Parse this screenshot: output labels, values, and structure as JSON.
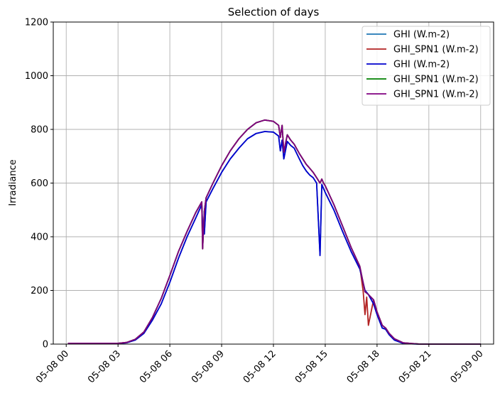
{
  "chart_data": {
    "type": "line",
    "title": "Selection of days",
    "xlabel": "",
    "ylabel": "Irradiance",
    "ylim": [
      0,
      1200
    ],
    "xlim": [
      "2024-05-07T23:15",
      "2024-05-09T00:45"
    ],
    "yticks": [
      0,
      200,
      400,
      600,
      800,
      1000,
      1200
    ],
    "xticks": [
      "05-08 00",
      "05-08 03",
      "05-08 06",
      "05-08 09",
      "05-08 12",
      "05-08 15",
      "05-08 18",
      "05-08 21",
      "05-09 00"
    ],
    "grid": true,
    "legend_position": "top-right",
    "series": [
      {
        "name": "GHI (W.m-2)",
        "color": "#1f77b4",
        "x": [
          0.1,
          3.0,
          3.5,
          4.0,
          4.5,
          5.0,
          5.5,
          6.0,
          6.5,
          7.0,
          7.5,
          7.85,
          7.9,
          8.0,
          8.1,
          8.5,
          9.0,
          9.5,
          10.0,
          10.5,
          11.0,
          11.5,
          12.0,
          12.3,
          12.4,
          12.5,
          12.6,
          12.8,
          13.0,
          13.2,
          13.5,
          13.7,
          13.9,
          14.1,
          14.3,
          14.5,
          14.7,
          14.8,
          14.9,
          15.0,
          15.5,
          16.0,
          16.5,
          17.0,
          17.3,
          17.5,
          17.8,
          18.0,
          18.3,
          18.5,
          18.7,
          19.0,
          19.5,
          20.0,
          20.5,
          21.0,
          22.0,
          23.0,
          24.0
        ],
        "values": [
          2,
          2,
          5,
          15,
          40,
          90,
          150,
          230,
          320,
          400,
          470,
          520,
          440,
          410,
          530,
          580,
          640,
          690,
          730,
          765,
          785,
          792,
          790,
          775,
          720,
          760,
          690,
          755,
          740,
          730,
          690,
          665,
          645,
          630,
          620,
          600,
          330,
          595,
          580,
          565,
          500,
          420,
          345,
          280,
          200,
          185,
          150,
          110,
          60,
          55,
          35,
          15,
          3,
          1,
          0,
          0,
          0,
          0,
          0
        ]
      },
      {
        "name": "GHI_SPN1 (W.m-2)",
        "color": "#b22222",
        "x": [
          0.1,
          3.0,
          3.5,
          4.0,
          4.5,
          5.0,
          5.5,
          6.0,
          6.5,
          7.0,
          7.5,
          7.85,
          7.9,
          8.0,
          8.1,
          8.5,
          9.0,
          9.5,
          10.0,
          10.5,
          11.0,
          11.5,
          12.0,
          12.3,
          12.4,
          12.5,
          12.6,
          12.8,
          13.0,
          13.2,
          13.5,
          13.7,
          13.9,
          14.1,
          14.3,
          14.5,
          14.7,
          14.8,
          14.9,
          15.0,
          15.5,
          16.0,
          16.5,
          17.0,
          17.2,
          17.3,
          17.4,
          17.5,
          17.8,
          18.0,
          18.3,
          18.5,
          18.7,
          19.0,
          19.5,
          20.0,
          20.5,
          21.0,
          22.0,
          23.0,
          24.0
        ],
        "values": [
          3,
          3,
          6,
          18,
          45,
          100,
          170,
          255,
          345,
          420,
          490,
          530,
          355,
          495,
          545,
          600,
          665,
          720,
          765,
          800,
          825,
          835,
          830,
          815,
          770,
          815,
          715,
          780,
          760,
          745,
          710,
          690,
          670,
          655,
          640,
          620,
          600,
          615,
          600,
          590,
          520,
          440,
          360,
          290,
          195,
          110,
          175,
          70,
          165,
          120,
          70,
          60,
          40,
          20,
          5,
          2,
          0,
          0,
          0,
          0,
          0
        ]
      },
      {
        "name": "GHI (W.m-2)",
        "color": "#0000cd",
        "x": [
          0.1,
          3.0,
          3.5,
          4.0,
          4.5,
          5.0,
          5.5,
          6.0,
          6.5,
          7.0,
          7.5,
          7.85,
          7.9,
          8.0,
          8.1,
          8.5,
          9.0,
          9.5,
          10.0,
          10.5,
          11.0,
          11.5,
          12.0,
          12.3,
          12.4,
          12.5,
          12.6,
          12.8,
          13.0,
          13.2,
          13.5,
          13.7,
          13.9,
          14.1,
          14.3,
          14.5,
          14.7,
          14.8,
          14.9,
          15.0,
          15.5,
          16.0,
          16.5,
          17.0,
          17.3,
          17.5,
          17.8,
          18.0,
          18.3,
          18.5,
          18.7,
          19.0,
          19.5,
          20.0,
          20.5,
          21.0,
          22.0,
          23.0,
          24.0
        ],
        "values": [
          2,
          2,
          5,
          15,
          40,
          90,
          150,
          230,
          320,
          400,
          470,
          520,
          440,
          410,
          530,
          580,
          640,
          690,
          730,
          765,
          785,
          792,
          790,
          775,
          720,
          760,
          690,
          755,
          740,
          730,
          690,
          665,
          645,
          630,
          620,
          600,
          330,
          595,
          580,
          565,
          500,
          420,
          345,
          280,
          200,
          185,
          150,
          110,
          60,
          55,
          35,
          15,
          3,
          1,
          0,
          0,
          0,
          0,
          0
        ]
      },
      {
        "name": "GHI_SPN1 (W.m-2)",
        "color": "#008000",
        "x": [
          0.1,
          3.0,
          3.5,
          4.0,
          4.5,
          5.0,
          5.5,
          6.0,
          6.5,
          7.0,
          7.5,
          7.85,
          7.9,
          8.0,
          8.1,
          8.5,
          9.0,
          9.5,
          10.0,
          10.5,
          11.0,
          11.5,
          12.0,
          12.3,
          12.4,
          12.5,
          12.6,
          12.8,
          13.0,
          13.2,
          13.5,
          13.7,
          13.9,
          14.1,
          14.3,
          14.5,
          14.7,
          14.8,
          14.9,
          15.0,
          15.5,
          16.0,
          16.5,
          17.0,
          17.3,
          17.5,
          17.8,
          18.0,
          18.3,
          18.5,
          18.7,
          19.0,
          19.5,
          20.0,
          20.5,
          21.0,
          22.0,
          23.0,
          24.0
        ],
        "values": [
          3,
          3,
          6,
          18,
          45,
          100,
          170,
          255,
          345,
          420,
          490,
          530,
          355,
          495,
          545,
          600,
          665,
          720,
          765,
          800,
          825,
          835,
          830,
          815,
          770,
          815,
          715,
          780,
          760,
          745,
          710,
          690,
          670,
          655,
          640,
          620,
          600,
          615,
          600,
          590,
          520,
          440,
          360,
          290,
          195,
          185,
          165,
          120,
          70,
          60,
          40,
          20,
          5,
          2,
          0,
          0,
          0,
          0,
          0
        ]
      },
      {
        "name": "GHI_SPN1 (W.m-2)",
        "color": "#800080",
        "x": [
          0.1,
          3.0,
          3.5,
          4.0,
          4.5,
          5.0,
          5.5,
          6.0,
          6.5,
          7.0,
          7.5,
          7.85,
          7.9,
          8.0,
          8.1,
          8.5,
          9.0,
          9.5,
          10.0,
          10.5,
          11.0,
          11.5,
          12.0,
          12.3,
          12.4,
          12.5,
          12.6,
          12.8,
          13.0,
          13.2,
          13.5,
          13.7,
          13.9,
          14.1,
          14.3,
          14.5,
          14.7,
          14.8,
          14.9,
          15.0,
          15.5,
          16.0,
          16.5,
          17.0,
          17.3,
          17.5,
          17.8,
          18.0,
          18.3,
          18.5,
          18.7,
          19.0,
          19.5,
          20.0,
          20.5,
          21.0,
          22.0,
          23.0,
          24.0
        ],
        "values": [
          3,
          3,
          6,
          18,
          45,
          100,
          170,
          255,
          345,
          420,
          490,
          530,
          355,
          495,
          545,
          600,
          665,
          720,
          765,
          800,
          825,
          835,
          830,
          815,
          770,
          815,
          715,
          780,
          760,
          745,
          710,
          690,
          670,
          655,
          640,
          620,
          600,
          615,
          600,
          590,
          520,
          440,
          360,
          290,
          195,
          185,
          165,
          120,
          70,
          60,
          40,
          20,
          5,
          2,
          0,
          0,
          0,
          0,
          0
        ]
      }
    ]
  }
}
